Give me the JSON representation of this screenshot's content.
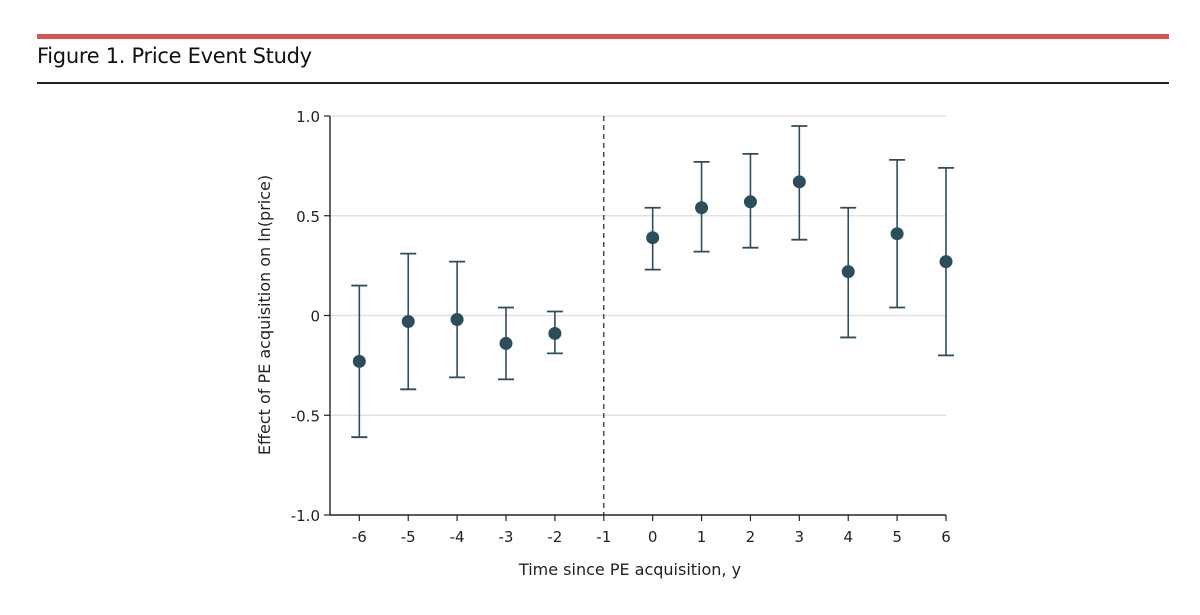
{
  "figure": {
    "title": "Figure 1. Price Event Study"
  },
  "colors": {
    "accent": "#d9534f",
    "marker": "#2e4d5c",
    "grid": "#dddddd",
    "axis": "#222222"
  },
  "chart_data": {
    "type": "scatter",
    "title": "",
    "xlabel": "Time since PE acquisition, y",
    "ylabel": "Effect of PE acquisition on ln(price)",
    "xlim": [
      -6.6,
      6
    ],
    "ylim": [
      -1.0,
      1.0
    ],
    "x_ticks": [
      -6,
      -5,
      -4,
      -3,
      -2,
      -1,
      0,
      1,
      2,
      3,
      4,
      5,
      6
    ],
    "x_tick_labels": [
      "-6",
      "-5",
      "-4",
      "-3",
      "-2",
      "-1",
      "0",
      "1",
      "2",
      "3",
      "4",
      "5",
      "6"
    ],
    "y_ticks": [
      1.0,
      0.5,
      0,
      -0.5,
      -1.0
    ],
    "y_tick_labels": [
      "1.0",
      "0.5",
      "0",
      "-0.5",
      "-1.0"
    ],
    "grid": "horizontal",
    "reference_line_x": -1,
    "series": [
      {
        "points": [
          {
            "x": -6,
            "y": -0.23,
            "lo": -0.61,
            "hi": 0.15
          },
          {
            "x": -5,
            "y": -0.03,
            "lo": -0.37,
            "hi": 0.31
          },
          {
            "x": -4,
            "y": -0.02,
            "lo": -0.31,
            "hi": 0.27
          },
          {
            "x": -3,
            "y": -0.14,
            "lo": -0.32,
            "hi": 0.04
          },
          {
            "x": -2,
            "y": -0.09,
            "lo": -0.19,
            "hi": 0.02
          },
          {
            "x": 0,
            "y": 0.39,
            "lo": 0.23,
            "hi": 0.54
          },
          {
            "x": 1,
            "y": 0.54,
            "lo": 0.32,
            "hi": 0.77
          },
          {
            "x": 2,
            "y": 0.57,
            "lo": 0.34,
            "hi": 0.81
          },
          {
            "x": 3,
            "y": 0.67,
            "lo": 0.38,
            "hi": 0.95
          },
          {
            "x": 4,
            "y": 0.22,
            "lo": -0.11,
            "hi": 0.54
          },
          {
            "x": 5,
            "y": 0.41,
            "lo": 0.04,
            "hi": 0.78
          },
          {
            "x": 6,
            "y": 0.27,
            "lo": -0.2,
            "hi": 0.74
          }
        ]
      }
    ]
  }
}
